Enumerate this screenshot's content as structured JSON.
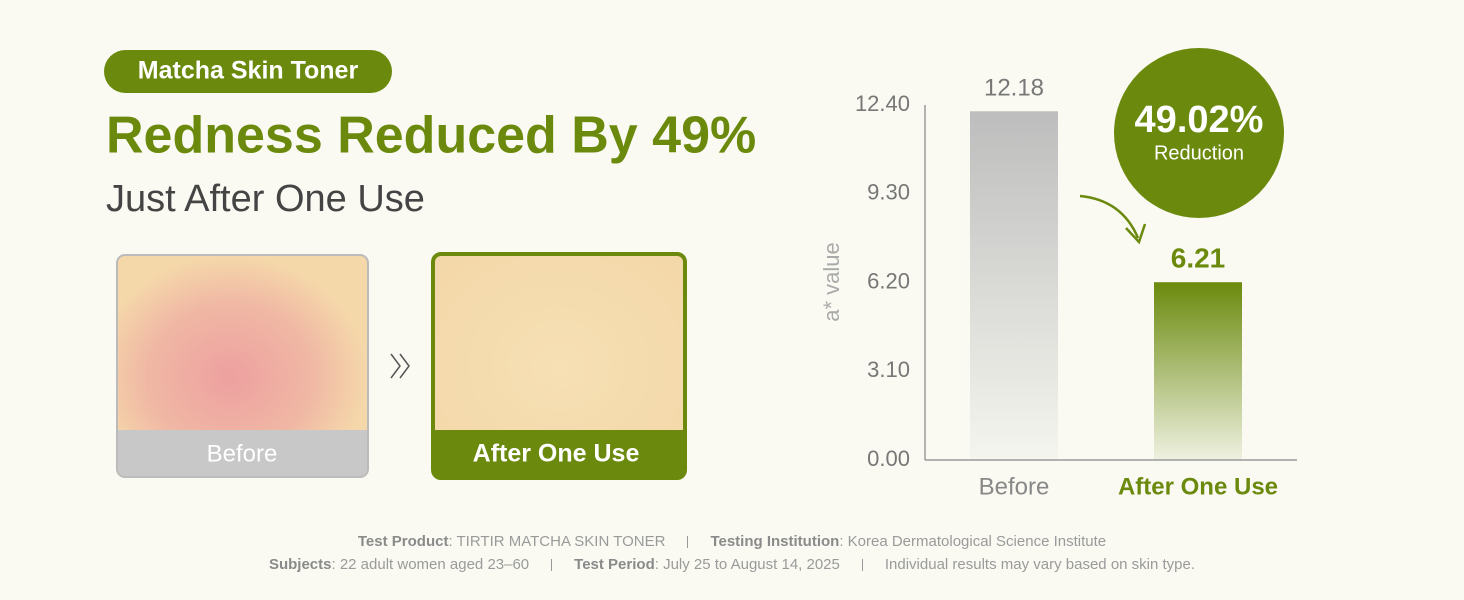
{
  "badge": "Matcha Skin Toner",
  "headline": "Redness Reduced By 49%",
  "subheadline": "Just After One Use",
  "photos": {
    "before_label": "Before",
    "after_label": "After One Use"
  },
  "chart_data": {
    "type": "bar",
    "y_label": "a* value",
    "categories": [
      "Before",
      "After One Use"
    ],
    "values": [
      12.18,
      6.21
    ],
    "colors": [
      "#bdbdbd",
      "#6b8a0d"
    ],
    "ylim": [
      0,
      12.4
    ],
    "yticks": [
      {
        "value": 0,
        "label": "0.00"
      },
      {
        "value": 3.1,
        "label": "3.10"
      },
      {
        "value": 6.2,
        "label": "6.20"
      },
      {
        "value": 9.3,
        "label": "9.30"
      },
      {
        "value": 12.4,
        "label": "12.40"
      }
    ],
    "callout": {
      "value": "49.02%",
      "label": "Reduction"
    }
  },
  "footnote": {
    "lines": [
      [
        {
          "label": "Test Product",
          "text": ": TIRTIR MATCHA SKIN TONER"
        },
        {
          "label": "Testing Institution",
          "text": ": Korea Dermatological Science Institute"
        }
      ],
      [
        {
          "label": "Subjects",
          "text": ": 22 adult women aged 23–60"
        },
        {
          "label": "Test Period",
          "text": ": July 25 to August 14, 2025"
        },
        {
          "text": "Individual results may vary based on skin type."
        }
      ]
    ]
  }
}
